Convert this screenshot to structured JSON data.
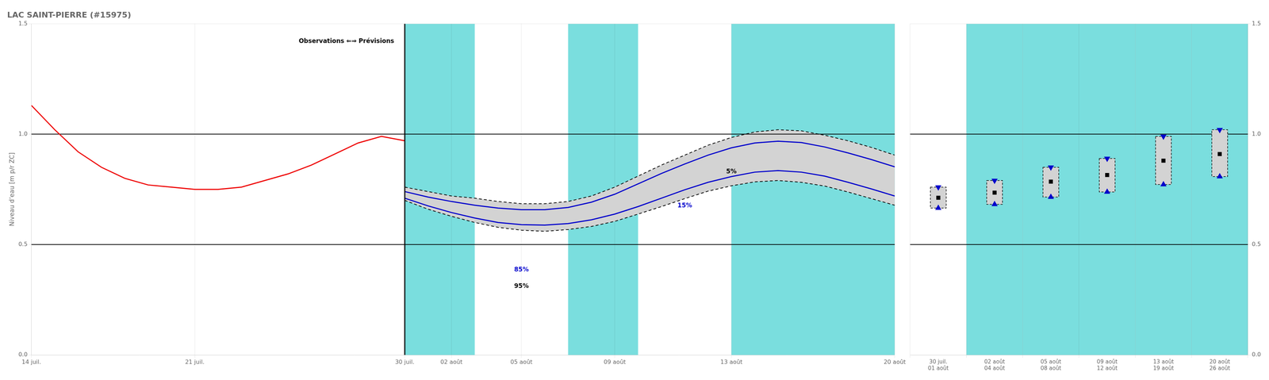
{
  "chart_data": [
    {
      "type": "line",
      "title": "LAC SAINT-PIERRE (#15975)",
      "y_label": "Niveau d’eau [m p/r ZC]",
      "xlim": [
        0,
        37
      ],
      "xticks": [
        {
          "value": 0,
          "label": "14 juil."
        },
        {
          "value": 7,
          "label": "21 juil."
        },
        {
          "value": 16,
          "label": "30 juil."
        },
        {
          "value": 18,
          "label": "02 août"
        },
        {
          "value": 21,
          "label": "05 août"
        },
        {
          "value": 25,
          "label": "09 août"
        },
        {
          "value": 30,
          "label": "13 août"
        },
        {
          "value": 37,
          "label": "20 août"
        }
      ],
      "ylim": [
        0.0,
        1.5
      ],
      "yticks": [
        {
          "value": 0.0,
          "label": "0.0"
        },
        0.5,
        {
          "value": 1.0,
          "label": "1.0"
        },
        1.5
      ],
      "grid": true,
      "series": [
        {
          "name": "Observations",
          "color": "#EE0000",
          "line_style": "solid",
          "x": [
            0,
            1,
            2,
            3,
            4,
            5,
            6,
            7,
            8,
            9,
            10,
            11,
            12,
            13,
            14,
            15,
            16
          ],
          "values": [
            1.13,
            1.02,
            0.92,
            0.85,
            0.8,
            0.77,
            0.76,
            0.75,
            0.75,
            0.76,
            0.79,
            0.82,
            0.86,
            0.91,
            0.96,
            0.99,
            0.97
          ]
        },
        {
          "name": "5%",
          "color": "#000000",
          "line_style": "dashed",
          "x": [
            16,
            17,
            18,
            19,
            20,
            21,
            22,
            23,
            24,
            25,
            26,
            27,
            28,
            29,
            30,
            31,
            32,
            33,
            34,
            35,
            36,
            37
          ],
          "values": [
            0.76,
            0.74,
            0.72,
            0.71,
            0.695,
            0.685,
            0.685,
            0.695,
            0.72,
            0.76,
            0.81,
            0.86,
            0.905,
            0.95,
            0.985,
            1.01,
            1.02,
            1.015,
            0.995,
            0.97,
            0.94,
            0.905
          ]
        },
        {
          "name": "15%",
          "color": "#0000CC",
          "line_style": "solid",
          "x": [
            16,
            17,
            18,
            19,
            20,
            21,
            22,
            23,
            24,
            25,
            26,
            27,
            28,
            29,
            30,
            31,
            32,
            33,
            34,
            35,
            36,
            37
          ],
          "values": [
            0.74,
            0.715,
            0.695,
            0.678,
            0.665,
            0.658,
            0.658,
            0.668,
            0.692,
            0.728,
            0.775,
            0.822,
            0.865,
            0.905,
            0.938,
            0.96,
            0.968,
            0.962,
            0.942,
            0.915,
            0.885,
            0.852
          ]
        },
        {
          "name": "85%",
          "color": "#0000CC",
          "line_style": "solid",
          "x": [
            16,
            17,
            18,
            19,
            20,
            21,
            22,
            23,
            24,
            25,
            26,
            27,
            28,
            29,
            30,
            31,
            32,
            33,
            34,
            35,
            36,
            37
          ],
          "values": [
            0.71,
            0.675,
            0.645,
            0.62,
            0.6,
            0.59,
            0.588,
            0.595,
            0.612,
            0.638,
            0.672,
            0.71,
            0.748,
            0.782,
            0.808,
            0.828,
            0.835,
            0.828,
            0.81,
            0.782,
            0.752,
            0.72
          ]
        },
        {
          "name": "95%",
          "color": "#000000",
          "line_style": "dashed",
          "x": [
            16,
            17,
            18,
            19,
            20,
            21,
            22,
            23,
            24,
            25,
            26,
            27,
            28,
            29,
            30,
            31,
            32,
            33,
            34,
            35,
            36,
            37
          ],
          "values": [
            0.7,
            0.66,
            0.628,
            0.6,
            0.578,
            0.565,
            0.56,
            0.568,
            0.582,
            0.605,
            0.638,
            0.672,
            0.708,
            0.742,
            0.766,
            0.784,
            0.79,
            0.782,
            0.765,
            0.738,
            0.708,
            0.678
          ]
        }
      ],
      "shade": {
        "from": "5%",
        "to": "95%",
        "color": "#D3D3D3"
      },
      "bands": {
        "ranges": [
          [
            16,
            19
          ],
          [
            23,
            26
          ],
          [
            30,
            37
          ]
        ],
        "color": "#7ADEDE"
      },
      "reference_lines": [
        0.5,
        1.0
      ],
      "divider": 16,
      "annotations": [
        {
          "text": "5%",
          "x": 30,
          "y": 0.83,
          "color": "#000000"
        },
        {
          "text": "15%",
          "x": 28,
          "y": 0.675,
          "color": "#0000CC"
        },
        {
          "text": "85%",
          "x": 21,
          "y": 0.385,
          "color": "#0000CC"
        },
        {
          "text": "95%",
          "x": 21,
          "y": 0.31,
          "color": "#000000"
        },
        {
          "text": "Observations ⇐⇒ Prévisions",
          "x": 13.5,
          "y": 1.42,
          "color": "#000000"
        }
      ]
    },
    {
      "type": "box",
      "categories": [
        "30 juil.\n01 août",
        "02 août\n04 août",
        "05 août\n08 août",
        "09 août\n12 août",
        "13 août\n19 août",
        "20 août\n26 août"
      ],
      "ylim": [
        0.0,
        1.5
      ],
      "yticks": [
        {
          "value": 0.0,
          "label": "0.0"
        },
        0.5,
        {
          "value": 1.0,
          "label": "1.0"
        },
        1.5
      ],
      "grid": true,
      "series": [
        {
          "name": "5%",
          "color": "#0000CC",
          "marker": "triangle-down",
          "values": [
            0.76,
            0.79,
            0.85,
            0.89,
            0.99,
            1.02
          ]
        },
        {
          "name": "95%",
          "color": "#0000CC",
          "marker": "triangle-up",
          "values": [
            0.665,
            0.682,
            0.715,
            0.738,
            0.772,
            0.808
          ]
        },
        {
          "color": "#000000",
          "marker": "square",
          "values": [
            0.712,
            0.735,
            0.785,
            0.815,
            0.88,
            0.91
          ]
        }
      ],
      "shade": {
        "from": "5%",
        "to": "95%",
        "color": "#D3D3D3",
        "line_style": "dashed"
      },
      "bands": {
        "color": "#7ADEDE",
        "unshaded_index": [
          0
        ]
      },
      "reference_lines": [
        0.5,
        1.0
      ]
    }
  ]
}
